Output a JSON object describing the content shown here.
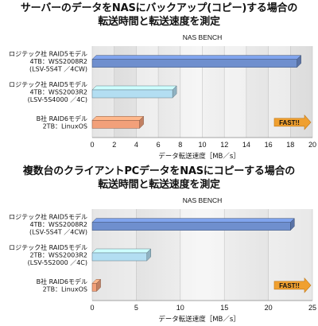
{
  "chart_data": [
    {
      "type": "bar",
      "orientation": "horizontal",
      "title_line1": "サーバーのデータをNASにバックアップ(コピー)する場合の",
      "title_line2": "転送時間と転送速度を測定",
      "subtitle": "NAS BENCH",
      "xlabel": "データ転送速度［MB／s］",
      "xlim": [
        0,
        20
      ],
      "xticks": [
        0,
        2,
        4,
        6,
        8,
        10,
        12,
        14,
        16,
        18,
        20
      ],
      "categories": [
        [
          "ロジテック社 RAID5モデル",
          "4TB：WSS2008R2",
          "(LSV-5S4T ／4CW)"
        ],
        [
          "ロジテック社 RAID5モデル",
          "4TB：WSS2003R2",
          "(LSV-5S4000 ／4C)"
        ],
        [
          "B社 RAID6モデル",
          "2TB：LinuxOS"
        ]
      ],
      "values": [
        18.6,
        7.3,
        4.3
      ],
      "bar_colors": [
        "#6f8fce",
        "#b3def2",
        "#f2a07a"
      ],
      "annotation": "FAST!!"
    },
    {
      "type": "bar",
      "orientation": "horizontal",
      "title_line1": "複数台のクライアントPCデータをNASにコピーする場合の",
      "title_line2": "転送時間と転送速度を測定",
      "subtitle": "NAS BENCH",
      "xlabel": "データ転送速度［MB／s］",
      "xlim": [
        0,
        25
      ],
      "xticks": [
        0,
        5,
        10,
        15,
        20,
        25
      ],
      "categories": [
        [
          "ロジテック社 RAID5モデル",
          "4TB：WSS2008R2",
          "(LSV-5S4T ／4CW)"
        ],
        [
          "ロジテック社 RAID5モデル",
          "2TB：WSS2003R2",
          "(LSV-5S2000 ／4C)"
        ],
        [
          "B社 RAID6モデル",
          "2TB：LinuxOS"
        ]
      ],
      "values": [
        22.5,
        6.2,
        0.5
      ],
      "bar_colors": [
        "#6f8fce",
        "#b3def2",
        "#f2a07a"
      ],
      "annotation": "FAST!!"
    }
  ]
}
